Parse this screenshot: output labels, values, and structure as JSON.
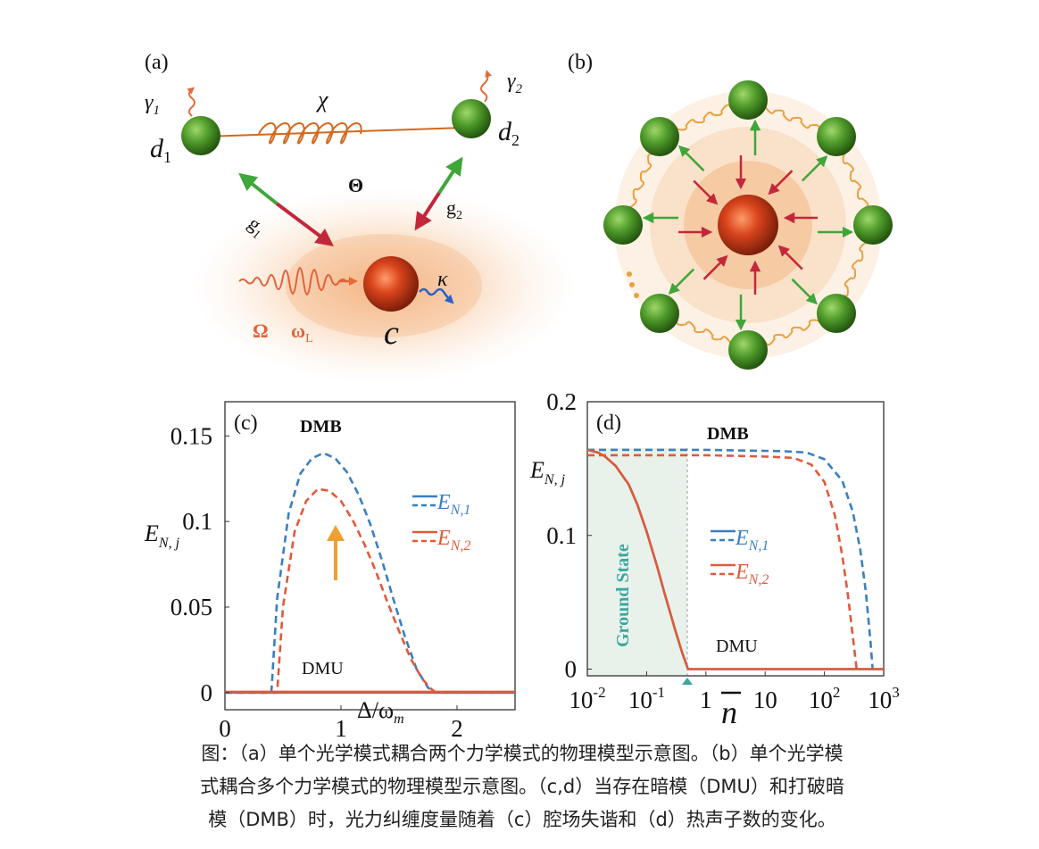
{
  "panel_a": {
    "label": "(a)",
    "gamma1": "γ",
    "gamma1_sub": "1",
    "gamma2": "γ",
    "gamma2_sub": "2",
    "chi": "χ",
    "d1": "d",
    "d1_sub": "1",
    "d2": "d",
    "d2_sub": "2",
    "theta": "Θ",
    "g1": "g",
    "g1_sub": "1",
    "g2": "g",
    "g2_sub": "2",
    "kappa": "κ",
    "omega_cap": "Ω",
    "omega_l": "ω",
    "omega_l_sub": "L",
    "c": "c"
  },
  "panel_b": {
    "label": "(b)"
  },
  "chart_data": [
    {
      "panel_label": "(c)",
      "type": "line",
      "annotation_top": "DMB",
      "annotation_bottom": "DMU",
      "xlabel": "Δ/ω",
      "xlabel_sub": "m",
      "ylabel": "E",
      "ylabel_sub": "N, j",
      "xlim": [
        0,
        2.5
      ],
      "ylim": [
        -0.01,
        0.17
      ],
      "xticks": [
        "0",
        "1",
        "2"
      ],
      "xtick_values": [
        0,
        1,
        2
      ],
      "yticks": [
        "0",
        "0.05",
        "0.1",
        "0.15"
      ],
      "ytick_values": [
        0,
        0.05,
        0.1,
        0.15
      ],
      "legend_labels": [
        "E",
        "E"
      ],
      "legend_subs": [
        "N,1",
        "N,2"
      ],
      "series": [
        {
          "style": "dashed",
          "color": "#3a7fc1",
          "x": [
            0,
            0.4,
            0.45,
            0.55,
            0.65,
            0.75,
            0.85,
            0.95,
            1.05,
            1.15,
            1.25,
            1.35,
            1.45,
            1.55,
            1.65,
            1.75,
            1.8,
            2.5
          ],
          "y": [
            0,
            0,
            0.055,
            0.105,
            0.128,
            0.137,
            0.14,
            0.137,
            0.129,
            0.116,
            0.099,
            0.078,
            0.055,
            0.033,
            0.014,
            0.003,
            0,
            0
          ]
        },
        {
          "style": "dashed",
          "color": "#e05a3a",
          "x": [
            0,
            0.45,
            0.5,
            0.6,
            0.7,
            0.8,
            0.9,
            1.0,
            1.1,
            1.2,
            1.3,
            1.4,
            1.5,
            1.6,
            1.7,
            1.78,
            1.82,
            2.5
          ],
          "y": [
            0,
            0,
            0.05,
            0.094,
            0.112,
            0.119,
            0.118,
            0.112,
            0.101,
            0.087,
            0.071,
            0.053,
            0.036,
            0.02,
            0.008,
            0.002,
            0,
            0
          ]
        },
        {
          "style": "solid",
          "color": "#3a7fc1",
          "x": [
            0,
            2.5
          ],
          "y": [
            0,
            0
          ]
        },
        {
          "style": "solid",
          "color": "#e05a3a",
          "x": [
            0,
            2.5
          ],
          "y": [
            0.0005,
            0.0005
          ]
        }
      ]
    },
    {
      "panel_label": "(d)",
      "type": "line",
      "xscale": "log",
      "annotation_top": "DMB",
      "annotation_bottom": "DMU",
      "shaded_label": "Ground State",
      "shaded_range": [
        0.01,
        0.5
      ],
      "xlabel": "n",
      "ylabel": "E",
      "ylabel_sub": "N, j",
      "xlim": [
        0.01,
        1000
      ],
      "ylim": [
        -0.005,
        0.2
      ],
      "xticks": [
        "10",
        "10",
        "1",
        "10",
        "10",
        "10"
      ],
      "xtick_exps": [
        "-2",
        "-1",
        "",
        "",
        "2",
        "3"
      ],
      "xtick_values": [
        0.01,
        0.1,
        1,
        10,
        100,
        1000
      ],
      "yticks": [
        "0",
        "0.1",
        "0.2"
      ],
      "ytick_values": [
        0,
        0.1,
        0.2
      ],
      "legend_labels": [
        "E",
        "E"
      ],
      "legend_subs": [
        "N,1",
        "N,2"
      ],
      "series": [
        {
          "style": "dashed",
          "color": "#3a7fc1",
          "x": [
            0.01,
            1,
            20,
            50,
            100,
            200,
            300,
            400,
            500,
            600,
            650
          ],
          "y": [
            0.164,
            0.164,
            0.163,
            0.162,
            0.157,
            0.141,
            0.118,
            0.09,
            0.058,
            0.02,
            0
          ]
        },
        {
          "style": "dashed",
          "color": "#e05a3a",
          "x": [
            0.01,
            1,
            10,
            30,
            60,
            100,
            150,
            200,
            250,
            300,
            350
          ],
          "y": [
            0.16,
            0.16,
            0.159,
            0.158,
            0.153,
            0.14,
            0.115,
            0.085,
            0.055,
            0.025,
            0
          ]
        },
        {
          "style": "solid",
          "color": "#3a7fc1",
          "x": [
            0.01,
            0.015,
            0.02,
            0.03,
            0.05,
            0.07,
            0.1,
            0.15,
            0.2,
            0.3,
            0.4,
            0.5,
            1000
          ],
          "y": [
            0.164,
            0.162,
            0.159,
            0.152,
            0.138,
            0.123,
            0.103,
            0.077,
            0.057,
            0.03,
            0.012,
            0,
            0
          ]
        },
        {
          "style": "solid",
          "color": "#e05a3a",
          "x": [
            0.01,
            0.015,
            0.02,
            0.03,
            0.05,
            0.07,
            0.1,
            0.15,
            0.2,
            0.3,
            0.4,
            0.5,
            1000
          ],
          "y": [
            0.164,
            0.162,
            0.159,
            0.152,
            0.138,
            0.123,
            0.103,
            0.077,
            0.057,
            0.03,
            0.012,
            0,
            0
          ]
        }
      ]
    }
  ],
  "caption": {
    "line1": "图：（a）单个光学模式耦合两个力学模式的物理模型示意图。（b）单个光学模",
    "line2": "式耦合多个力学模式的物理模型示意图。（c,d）当存在暗模（DMU）和打破暗",
    "line3": "模（DMB）时，光力纠缠度量随着（c）腔场失谐和（d）热声子数的变化。"
  },
  "colors": {
    "blue": "#3a7fc1",
    "red": "#e05a3a",
    "green_ball": "#4e9a2a",
    "orange_glow": "#f5c08e",
    "spring": "#e8a040",
    "shade": "#e9f2ea"
  }
}
